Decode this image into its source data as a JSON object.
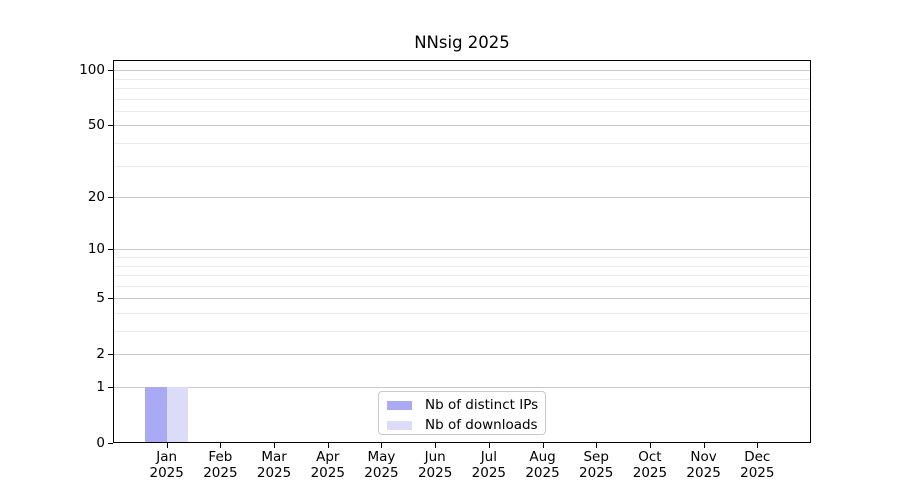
{
  "chart_data": {
    "type": "bar",
    "title": "NNsig 2025",
    "xlabel": "",
    "ylabel": "",
    "x_tick_labels": [
      [
        "Jan",
        "2025"
      ],
      [
        "Feb",
        "2025"
      ],
      [
        "Mar",
        "2025"
      ],
      [
        "Apr",
        "2025"
      ],
      [
        "May",
        "2025"
      ],
      [
        "Jun",
        "2025"
      ],
      [
        "Jul",
        "2025"
      ],
      [
        "Aug",
        "2025"
      ],
      [
        "Sep",
        "2025"
      ],
      [
        "Oct",
        "2025"
      ],
      [
        "Nov",
        "2025"
      ],
      [
        "Dec",
        "2025"
      ]
    ],
    "series": [
      {
        "name": "Nb of distinct IPs",
        "color": "#a9a9f4",
        "values": [
          1,
          0,
          0,
          0,
          0,
          0,
          0,
          0,
          0,
          0,
          0,
          0
        ]
      },
      {
        "name": "Nb of downloads",
        "color": "#dcdcf8",
        "values": [
          1,
          0,
          0,
          0,
          0,
          0,
          0,
          0,
          0,
          0,
          0,
          0
        ]
      }
    ],
    "y_scale": "log1p (y position proportional to log10(1+value))",
    "y_ticks": [
      0,
      1,
      2,
      5,
      10,
      20,
      50,
      100
    ],
    "y_minor_ticks": [
      3,
      4,
      6,
      7,
      8,
      9,
      30,
      40,
      60,
      70,
      80,
      90
    ],
    "ylim": [
      0,
      113.6
    ],
    "grid": "horizontal-only",
    "legend_position": "lower center",
    "colors": {
      "spine": "#000000",
      "major_grid": "#c9c9c9",
      "minor_grid": "#ececec",
      "text": "#000000",
      "background": "#ffffff"
    }
  },
  "legend": {
    "items": [
      {
        "label": "Nb of distinct IPs"
      },
      {
        "label": "Nb of downloads"
      }
    ]
  }
}
